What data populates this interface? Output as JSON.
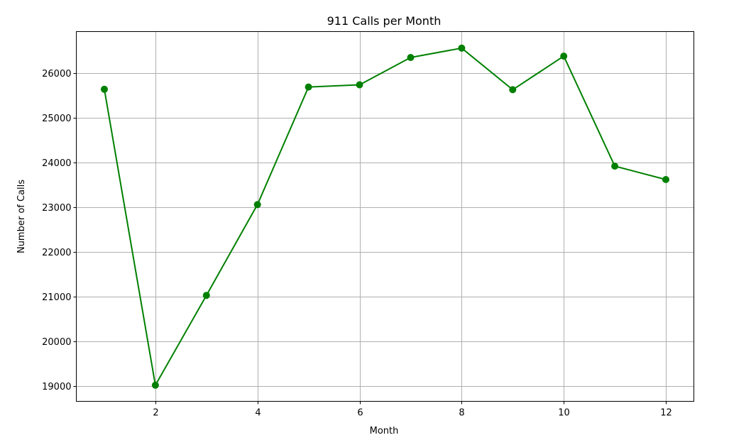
{
  "chart_data": {
    "type": "line",
    "title": "911 Calls per Month",
    "xlabel": "Month",
    "ylabel": "Number of Calls",
    "x": [
      1,
      2,
      3,
      4,
      5,
      6,
      7,
      8,
      9,
      10,
      11,
      12
    ],
    "series": [
      {
        "values": [
          25640,
          19020,
          21030,
          23060,
          25690,
          25740,
          26350,
          26560,
          25630,
          26380,
          23920,
          23620
        ],
        "color": "#008000",
        "marker": "circle"
      }
    ],
    "xlim": [
      0.45,
      12.55
    ],
    "ylim": [
      18660,
      26930
    ],
    "xticks": [
      2,
      4,
      6,
      8,
      10,
      12
    ],
    "yticks": [
      19000,
      20000,
      21000,
      22000,
      23000,
      24000,
      25000,
      26000
    ],
    "grid": true
  }
}
